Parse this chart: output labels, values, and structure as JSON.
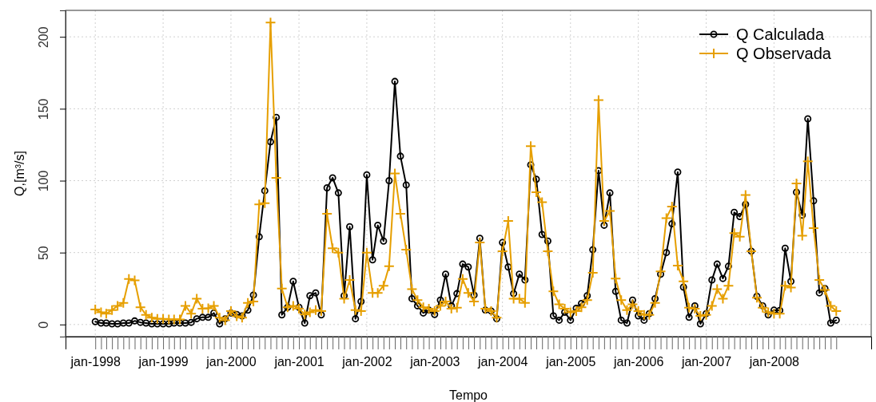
{
  "chart_data": {
    "type": "line",
    "xlabel": "Tempo",
    "ylabel": "Q,[m³/s]",
    "x": [
      "1998-01",
      "1998-02",
      "1998-03",
      "1998-04",
      "1998-05",
      "1998-06",
      "1998-07",
      "1998-08",
      "1998-09",
      "1998-10",
      "1998-11",
      "1998-12",
      "1999-01",
      "1999-02",
      "1999-03",
      "1999-04",
      "1999-05",
      "1999-06",
      "1999-07",
      "1999-08",
      "1999-09",
      "1999-10",
      "1999-11",
      "1999-12",
      "2000-01",
      "2000-02",
      "2000-03",
      "2000-04",
      "2000-05",
      "2000-06",
      "2000-07",
      "2000-08",
      "2000-09",
      "2000-10",
      "2000-11",
      "2000-12",
      "2001-01",
      "2001-02",
      "2001-03",
      "2001-04",
      "2001-05",
      "2001-06",
      "2001-07",
      "2001-08",
      "2001-09",
      "2001-10",
      "2001-11",
      "2001-12",
      "2002-01",
      "2002-02",
      "2002-03",
      "2002-04",
      "2002-05",
      "2002-06",
      "2002-07",
      "2002-08",
      "2002-09",
      "2002-10",
      "2002-11",
      "2002-12",
      "2003-01",
      "2003-02",
      "2003-03",
      "2003-04",
      "2003-05",
      "2003-06",
      "2003-07",
      "2003-08",
      "2003-09",
      "2003-10",
      "2003-11",
      "2003-12",
      "2004-01",
      "2004-02",
      "2004-03",
      "2004-04",
      "2004-05",
      "2004-06",
      "2004-07",
      "2004-08",
      "2004-09",
      "2004-10",
      "2004-11",
      "2004-12",
      "2005-01",
      "2005-02",
      "2005-03",
      "2005-04",
      "2005-05",
      "2005-06",
      "2005-07",
      "2005-08",
      "2005-09",
      "2005-10",
      "2005-11",
      "2005-12",
      "2006-01",
      "2006-02",
      "2006-03",
      "2006-04",
      "2006-05",
      "2006-06",
      "2006-07",
      "2006-08",
      "2006-09",
      "2006-10",
      "2006-11",
      "2006-12",
      "2007-01",
      "2007-02",
      "2007-03",
      "2007-04",
      "2007-05",
      "2007-06",
      "2007-07",
      "2007-08",
      "2007-09",
      "2007-10",
      "2007-11",
      "2007-12",
      "2008-01",
      "2008-02",
      "2008-03",
      "2008-04",
      "2008-05",
      "2008-06",
      "2008-07",
      "2008-08",
      "2008-09",
      "2008-10",
      "2008-11",
      "2008-12"
    ],
    "series": [
      {
        "name": "Q Calculada",
        "color": "#000000",
        "marker": "circle",
        "values": [
          2,
          1,
          1,
          0.5,
          0.5,
          1,
          1,
          2.5,
          1.5,
          1,
          0.5,
          0.5,
          0.5,
          0.5,
          1,
          1,
          1,
          1.5,
          4,
          5,
          5,
          8,
          0.5,
          4,
          8,
          7,
          6,
          10,
          20.5,
          61,
          93,
          127,
          144,
          6.7,
          12,
          30,
          12,
          1,
          20,
          22,
          6.7,
          95,
          102,
          91.5,
          20,
          68,
          4,
          16,
          104,
          45,
          69,
          58,
          100,
          169,
          117,
          97,
          18,
          13,
          8,
          10,
          7,
          17,
          35,
          13,
          21.5,
          42,
          40,
          20.5,
          60,
          10,
          9.4,
          4,
          57,
          40,
          21.5,
          35,
          31,
          111,
          101,
          62.6,
          58,
          6,
          3,
          8.5,
          3,
          11.3,
          14.6,
          20,
          52,
          107,
          69,
          91.5,
          23,
          3,
          1,
          17,
          6,
          3,
          7.6,
          18,
          35,
          50,
          70,
          106,
          26,
          5,
          13,
          0.5,
          7.6,
          31,
          42,
          32,
          40.5,
          78,
          75,
          83.5,
          51,
          19.6,
          13,
          6.7,
          10,
          9.8,
          53,
          30,
          92,
          76,
          143,
          86,
          22,
          25,
          1,
          3
        ]
      },
      {
        "name": "Q Observada",
        "color": "#e69f00",
        "marker": "cross",
        "values": [
          10.4,
          8.5,
          7.6,
          10,
          13,
          15,
          31.7,
          30.7,
          12,
          6.7,
          4.8,
          3.9,
          4,
          3.5,
          3.5,
          3.5,
          13,
          7.6,
          18,
          11,
          11.3,
          13,
          4.8,
          3,
          9.4,
          5.7,
          4.8,
          15,
          16,
          83.5,
          84.4,
          210,
          102,
          25,
          12,
          13,
          11,
          7,
          8.5,
          10,
          9.4,
          77,
          53,
          50,
          18,
          31,
          10,
          9.4,
          50,
          22,
          22,
          27,
          40.5,
          105,
          77,
          52,
          24.6,
          17,
          12,
          11,
          9.4,
          13,
          16,
          11,
          11.7,
          31.7,
          22,
          16,
          57,
          11,
          9.4,
          4.8,
          51,
          72,
          18,
          18,
          15,
          124,
          92,
          85,
          51,
          23,
          14,
          11,
          8.5,
          9.4,
          12,
          17,
          36,
          156,
          72,
          79,
          32,
          17,
          10,
          14,
          9.4,
          6.7,
          6.7,
          15,
          37,
          74,
          82,
          41,
          30,
          11.7,
          11,
          6,
          6.7,
          13,
          24.6,
          18,
          27,
          63.5,
          61,
          90,
          51,
          18.7,
          11.7,
          8.5,
          7.6,
          7.6,
          27,
          25.7,
          98,
          61.7,
          113.5,
          67,
          31,
          24,
          13,
          9.4
        ]
      }
    ],
    "xlim": [
      "1997-07-25",
      "2009-06-07"
    ],
    "xticks": [
      {
        "value": "1998-01",
        "label": "jan-1998"
      },
      {
        "value": "1998-02",
        "label": null
      },
      {
        "value": "1998-03",
        "label": null
      },
      {
        "value": "1998-04",
        "label": null
      },
      {
        "value": "1998-05",
        "label": null
      },
      {
        "value": "1998-06",
        "label": null
      },
      {
        "value": "1998-07",
        "label": null
      },
      {
        "value": "1998-08",
        "label": null
      },
      {
        "value": "1998-09",
        "label": null
      },
      {
        "value": "1998-10",
        "label": null
      },
      {
        "value": "1998-11",
        "label": null
      },
      {
        "value": "1998-12",
        "label": null
      },
      {
        "value": "1999-01",
        "label": "jan-1999"
      },
      {
        "value": "1999-02",
        "label": null
      },
      {
        "value": "1999-03",
        "label": null
      },
      {
        "value": "1999-04",
        "label": null
      },
      {
        "value": "1999-05",
        "label": null
      },
      {
        "value": "1999-06",
        "label": null
      },
      {
        "value": "1999-07",
        "label": null
      },
      {
        "value": "1999-08",
        "label": null
      },
      {
        "value": "1999-09",
        "label": null
      },
      {
        "value": "1999-10",
        "label": null
      },
      {
        "value": "1999-11",
        "label": null
      },
      {
        "value": "1999-12",
        "label": null
      },
      {
        "value": "2000-01",
        "label": "jan-2000"
      },
      {
        "value": "2000-02",
        "label": null
      },
      {
        "value": "2000-03",
        "label": null
      },
      {
        "value": "2000-04",
        "label": null
      },
      {
        "value": "2000-05",
        "label": null
      },
      {
        "value": "2000-06",
        "label": null
      },
      {
        "value": "2000-07",
        "label": null
      },
      {
        "value": "2000-08",
        "label": null
      },
      {
        "value": "2000-09",
        "label": null
      },
      {
        "value": "2000-10",
        "label": null
      },
      {
        "value": "2000-11",
        "label": null
      },
      {
        "value": "2000-12",
        "label": null
      },
      {
        "value": "2001-01",
        "label": "jan-2001"
      },
      {
        "value": "2001-02",
        "label": null
      },
      {
        "value": "2001-03",
        "label": null
      },
      {
        "value": "2001-04",
        "label": null
      },
      {
        "value": "2001-05",
        "label": null
      },
      {
        "value": "2001-06",
        "label": null
      },
      {
        "value": "2001-07",
        "label": null
      },
      {
        "value": "2001-08",
        "label": null
      },
      {
        "value": "2001-09",
        "label": null
      },
      {
        "value": "2001-10",
        "label": null
      },
      {
        "value": "2001-11",
        "label": null
      },
      {
        "value": "2001-12",
        "label": null
      },
      {
        "value": "2002-01",
        "label": "jan-2002"
      },
      {
        "value": "2002-02",
        "label": null
      },
      {
        "value": "2002-03",
        "label": null
      },
      {
        "value": "2002-04",
        "label": null
      },
      {
        "value": "2002-05",
        "label": null
      },
      {
        "value": "2002-06",
        "label": null
      },
      {
        "value": "2002-07",
        "label": null
      },
      {
        "value": "2002-08",
        "label": null
      },
      {
        "value": "2002-09",
        "label": null
      },
      {
        "value": "2002-10",
        "label": null
      },
      {
        "value": "2002-11",
        "label": null
      },
      {
        "value": "2002-12",
        "label": null
      },
      {
        "value": "2003-01",
        "label": "jan-2003"
      },
      {
        "value": "2003-02",
        "label": null
      },
      {
        "value": "2003-03",
        "label": null
      },
      {
        "value": "2003-04",
        "label": null
      },
      {
        "value": "2003-05",
        "label": null
      },
      {
        "value": "2003-06",
        "label": null
      },
      {
        "value": "2003-07",
        "label": null
      },
      {
        "value": "2003-08",
        "label": null
      },
      {
        "value": "2003-09",
        "label": null
      },
      {
        "value": "2003-10",
        "label": null
      },
      {
        "value": "2003-11",
        "label": null
      },
      {
        "value": "2003-12",
        "label": null
      },
      {
        "value": "2004-01",
        "label": "jan-2004"
      },
      {
        "value": "2004-02",
        "label": null
      },
      {
        "value": "2004-03",
        "label": null
      },
      {
        "value": "2004-04",
        "label": null
      },
      {
        "value": "2004-05",
        "label": null
      },
      {
        "value": "2004-06",
        "label": null
      },
      {
        "value": "2004-07",
        "label": null
      },
      {
        "value": "2004-08",
        "label": null
      },
      {
        "value": "2004-09",
        "label": null
      },
      {
        "value": "2004-10",
        "label": null
      },
      {
        "value": "2004-11",
        "label": null
      },
      {
        "value": "2004-12",
        "label": null
      },
      {
        "value": "2005-01",
        "label": "jan-2005"
      },
      {
        "value": "2005-02",
        "label": null
      },
      {
        "value": "2005-03",
        "label": null
      },
      {
        "value": "2005-04",
        "label": null
      },
      {
        "value": "2005-05",
        "label": null
      },
      {
        "value": "2005-06",
        "label": null
      },
      {
        "value": "2005-07",
        "label": null
      },
      {
        "value": "2005-08",
        "label": null
      },
      {
        "value": "2005-09",
        "label": null
      },
      {
        "value": "2005-10",
        "label": null
      },
      {
        "value": "2005-11",
        "label": null
      },
      {
        "value": "2005-12",
        "label": null
      },
      {
        "value": "2006-01",
        "label": "jan-2006"
      },
      {
        "value": "2006-02",
        "label": null
      },
      {
        "value": "2006-03",
        "label": null
      },
      {
        "value": "2006-04",
        "label": null
      },
      {
        "value": "2006-05",
        "label": null
      },
      {
        "value": "2006-06",
        "label": null
      },
      {
        "value": "2006-07",
        "label": null
      },
      {
        "value": "2006-08",
        "label": null
      },
      {
        "value": "2006-09",
        "label": null
      },
      {
        "value": "2006-10",
        "label": null
      },
      {
        "value": "2006-11",
        "label": null
      },
      {
        "value": "2006-12",
        "label": null
      },
      {
        "value": "2007-01",
        "label": "jan-2007"
      },
      {
        "value": "2007-02",
        "label": null
      },
      {
        "value": "2007-03",
        "label": null
      },
      {
        "value": "2007-04",
        "label": null
      },
      {
        "value": "2007-05",
        "label": null
      },
      {
        "value": "2007-06",
        "label": null
      },
      {
        "value": "2007-07",
        "label": null
      },
      {
        "value": "2007-08",
        "label": null
      },
      {
        "value": "2007-09",
        "label": null
      },
      {
        "value": "2007-10",
        "label": null
      },
      {
        "value": "2007-11",
        "label": null
      },
      {
        "value": "2007-12",
        "label": null
      },
      {
        "value": "2008-01",
        "label": "jan-2008"
      },
      {
        "value": "2008-02",
        "label": null
      },
      {
        "value": "2008-03",
        "label": null
      },
      {
        "value": "2008-04",
        "label": null
      },
      {
        "value": "2008-05",
        "label": null
      },
      {
        "value": "2008-06",
        "label": null
      },
      {
        "value": "2008-07",
        "label": null
      },
      {
        "value": "2008-08",
        "label": null
      },
      {
        "value": "2008-09",
        "label": null
      },
      {
        "value": "2008-10",
        "label": null
      },
      {
        "value": "2008-11",
        "label": null
      },
      {
        "value": "2008-12",
        "label": null
      }
    ],
    "ylim": [
      -8.4,
      218.4
    ],
    "yticks": [
      0,
      50,
      100,
      150,
      200
    ],
    "grid": true,
    "legend": "top right",
    "line_style": "solid"
  }
}
